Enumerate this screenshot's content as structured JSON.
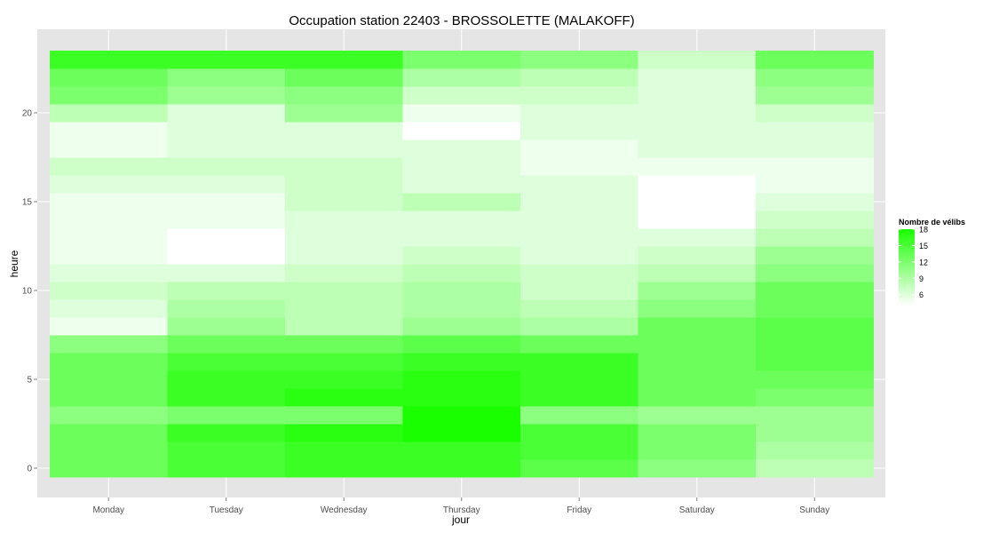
{
  "chart_data": {
    "type": "heatmap",
    "title": "Occupation station 22403 - BROSSOLETTE (MALAKOFF)",
    "xlabel": "jour",
    "ylabel": "heure",
    "x": [
      "Monday",
      "Tuesday",
      "Wednesday",
      "Thursday",
      "Friday",
      "Saturday",
      "Sunday"
    ],
    "y": [
      0,
      1,
      2,
      3,
      4,
      5,
      6,
      7,
      8,
      9,
      10,
      11,
      12,
      13,
      14,
      15,
      16,
      17,
      18,
      19,
      20,
      21,
      22,
      23
    ],
    "y_ticks": [
      0,
      5,
      10,
      15,
      20
    ],
    "ylim": [
      -0.5,
      23.5
    ],
    "grid": true,
    "legend": {
      "title": "Nombre de vélibs",
      "ticks": [
        18,
        15,
        12,
        9,
        6
      ],
      "range": [
        4,
        18
      ],
      "low_color": "#ffffff",
      "high_color": "#1aff00",
      "position": "right"
    },
    "values": [
      [
        13,
        15,
        16,
        16,
        14,
        11,
        8
      ],
      [
        13,
        15,
        16,
        16,
        15,
        12,
        9
      ],
      [
        13,
        16,
        17,
        18,
        15,
        12,
        10
      ],
      [
        11,
        12,
        12,
        18,
        11,
        10,
        10
      ],
      [
        13,
        16,
        17,
        17,
        16,
        13,
        12
      ],
      [
        13,
        16,
        16,
        17,
        16,
        13,
        13
      ],
      [
        13,
        15,
        15,
        16,
        16,
        13,
        14
      ],
      [
        11,
        13,
        13,
        14,
        13,
        13,
        14
      ],
      [
        5,
        10,
        8,
        10,
        9,
        13,
        14
      ],
      [
        6,
        9,
        8,
        9,
        8,
        11,
        13
      ],
      [
        7,
        8,
        8,
        9,
        7,
        10,
        13
      ],
      [
        6,
        6,
        7,
        8,
        7,
        8,
        11
      ],
      [
        5,
        4,
        6,
        7,
        6,
        7,
        10
      ],
      [
        5,
        4,
        6,
        6,
        6,
        6,
        8
      ],
      [
        5,
        5,
        6,
        6,
        6,
        4,
        7
      ],
      [
        5,
        5,
        7,
        8,
        6,
        4,
        6
      ],
      [
        6,
        6,
        7,
        6,
        6,
        4,
        5
      ],
      [
        7,
        7,
        7,
        6,
        5,
        5,
        5
      ],
      [
        5,
        6,
        6,
        6,
        5,
        6,
        6
      ],
      [
        5,
        6,
        6,
        4,
        6,
        6,
        6
      ],
      [
        8,
        6,
        10,
        5,
        6,
        6,
        7
      ],
      [
        12,
        10,
        11,
        7,
        7,
        6,
        10
      ],
      [
        13,
        11,
        13,
        9,
        8,
        6,
        11
      ],
      [
        16,
        16,
        16,
        12,
        11,
        7,
        13
      ]
    ]
  }
}
